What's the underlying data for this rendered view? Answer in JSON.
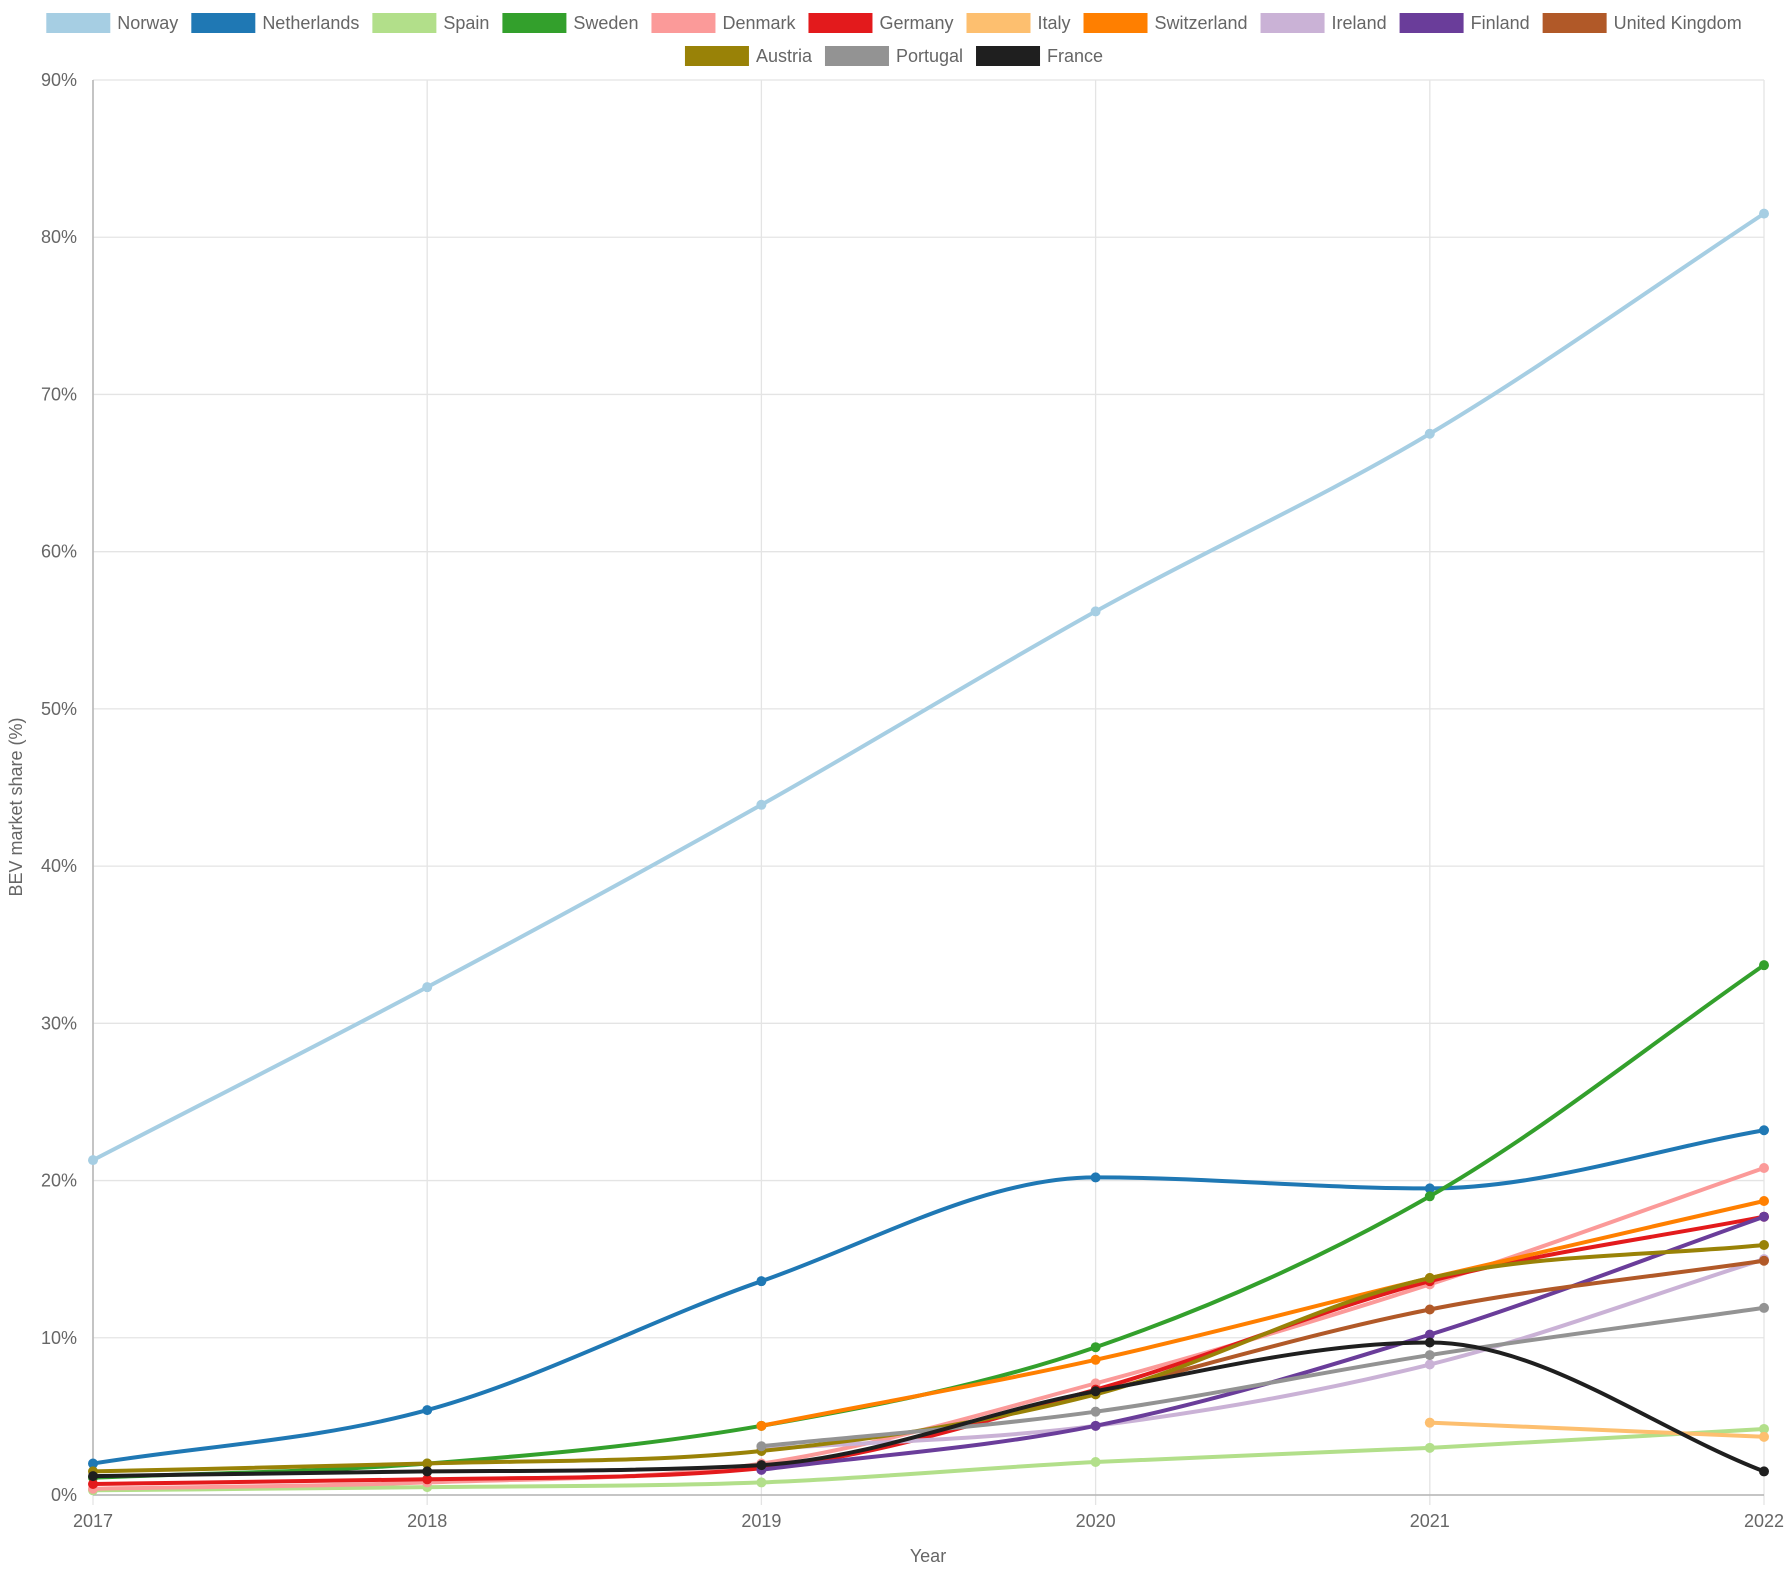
{
  "chart_data": {
    "type": "line",
    "xlabel": "Year",
    "ylabel": "BEV market share (%)",
    "x": [
      "2017",
      "2018",
      "2019",
      "2020",
      "2021",
      "2022"
    ],
    "ylim": [
      0,
      90
    ],
    "yticks": [
      0,
      10,
      20,
      30,
      40,
      50,
      60,
      70,
      80,
      90
    ],
    "ytick_labels": [
      "0%",
      "10%",
      "20%",
      "30%",
      "40%",
      "50%",
      "60%",
      "70%",
      "80%",
      "90%"
    ],
    "grid": true,
    "legend_position": "top",
    "series": [
      {
        "name": "Norway",
        "color": "#a6cee3",
        "values": [
          21.3,
          32.3,
          43.9,
          56.2,
          67.5,
          81.5
        ]
      },
      {
        "name": "Netherlands",
        "color": "#1f78b4",
        "values": [
          2.0,
          5.4,
          13.6,
          20.2,
          19.5,
          23.2
        ]
      },
      {
        "name": "Spain",
        "color": "#b2df8a",
        "values": [
          0.3,
          0.5,
          0.8,
          2.1,
          3.0,
          4.2
        ]
      },
      {
        "name": "Sweden",
        "color": "#33a02c",
        "values": [
          1.1,
          2.0,
          4.4,
          9.4,
          19.0,
          33.7
        ]
      },
      {
        "name": "Denmark",
        "color": "#fb9a99",
        "values": [
          0.4,
          0.8,
          2.0,
          7.1,
          13.4,
          20.8
        ]
      },
      {
        "name": "Germany",
        "color": "#e31a1c",
        "values": [
          0.7,
          1.0,
          1.7,
          6.7,
          13.6,
          17.7
        ]
      },
      {
        "name": "Italy",
        "color": "#fdbf6f",
        "values": [
          null,
          null,
          null,
          null,
          4.6,
          3.7
        ]
      },
      {
        "name": "Switzerland",
        "color": "#ff7f00",
        "values": [
          null,
          null,
          4.4,
          8.6,
          13.8,
          18.7
        ]
      },
      {
        "name": "Ireland",
        "color": "#cab2d6",
        "values": [
          null,
          null,
          2.9,
          4.4,
          8.3,
          15.0
        ]
      },
      {
        "name": "Finland",
        "color": "#6a3d9a",
        "values": [
          null,
          null,
          1.6,
          4.4,
          10.2,
          17.7
        ]
      },
      {
        "name": "United Kingdom",
        "color": "#b15928",
        "values": [
          null,
          null,
          null,
          6.5,
          11.8,
          14.9
        ]
      },
      {
        "name": "Austria",
        "color": "#998207",
        "values": [
          1.5,
          2.0,
          2.8,
          6.4,
          13.8,
          15.9
        ]
      },
      {
        "name": "Portugal",
        "color": "#939393",
        "values": [
          null,
          null,
          3.1,
          5.3,
          8.9,
          11.9
        ]
      },
      {
        "name": "France",
        "color": "#1f1f1f",
        "values": [
          1.2,
          1.5,
          1.9,
          6.6,
          9.7,
          1.5
        ]
      }
    ]
  }
}
